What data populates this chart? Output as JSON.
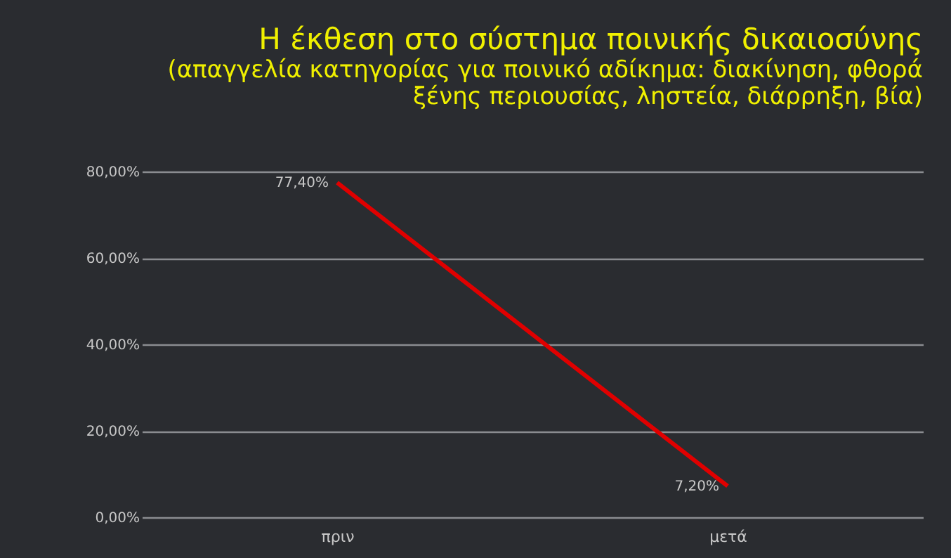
{
  "chart_data": {
    "type": "line",
    "title": "Η έκθεση στο σύστημα ποινικής δικαιοσύνης",
    "subtitle": "(απαγγελία κατηγορίας για ποινικό αδίκημα: διακίνηση, φθορά\nξένης περιουσίας, ληστεία, διάρρηξη, βία)",
    "categories": [
      "πριν",
      "μετά"
    ],
    "series": [
      {
        "color": "#e00000",
        "values": [
          77.4,
          7.2
        ],
        "value_labels": [
          "77,40%",
          "7,20%"
        ]
      }
    ],
    "ylim": [
      0,
      80
    ],
    "yticks": [
      {
        "value": 0,
        "label": "0,00%"
      },
      {
        "value": 20,
        "label": "20,00%"
      },
      {
        "value": 40,
        "label": "40,00%"
      },
      {
        "value": 60,
        "label": "60,00%"
      },
      {
        "value": 80,
        "label": "80,00%"
      }
    ],
    "grid": "y",
    "marker": "none",
    "line_style": "solid"
  }
}
